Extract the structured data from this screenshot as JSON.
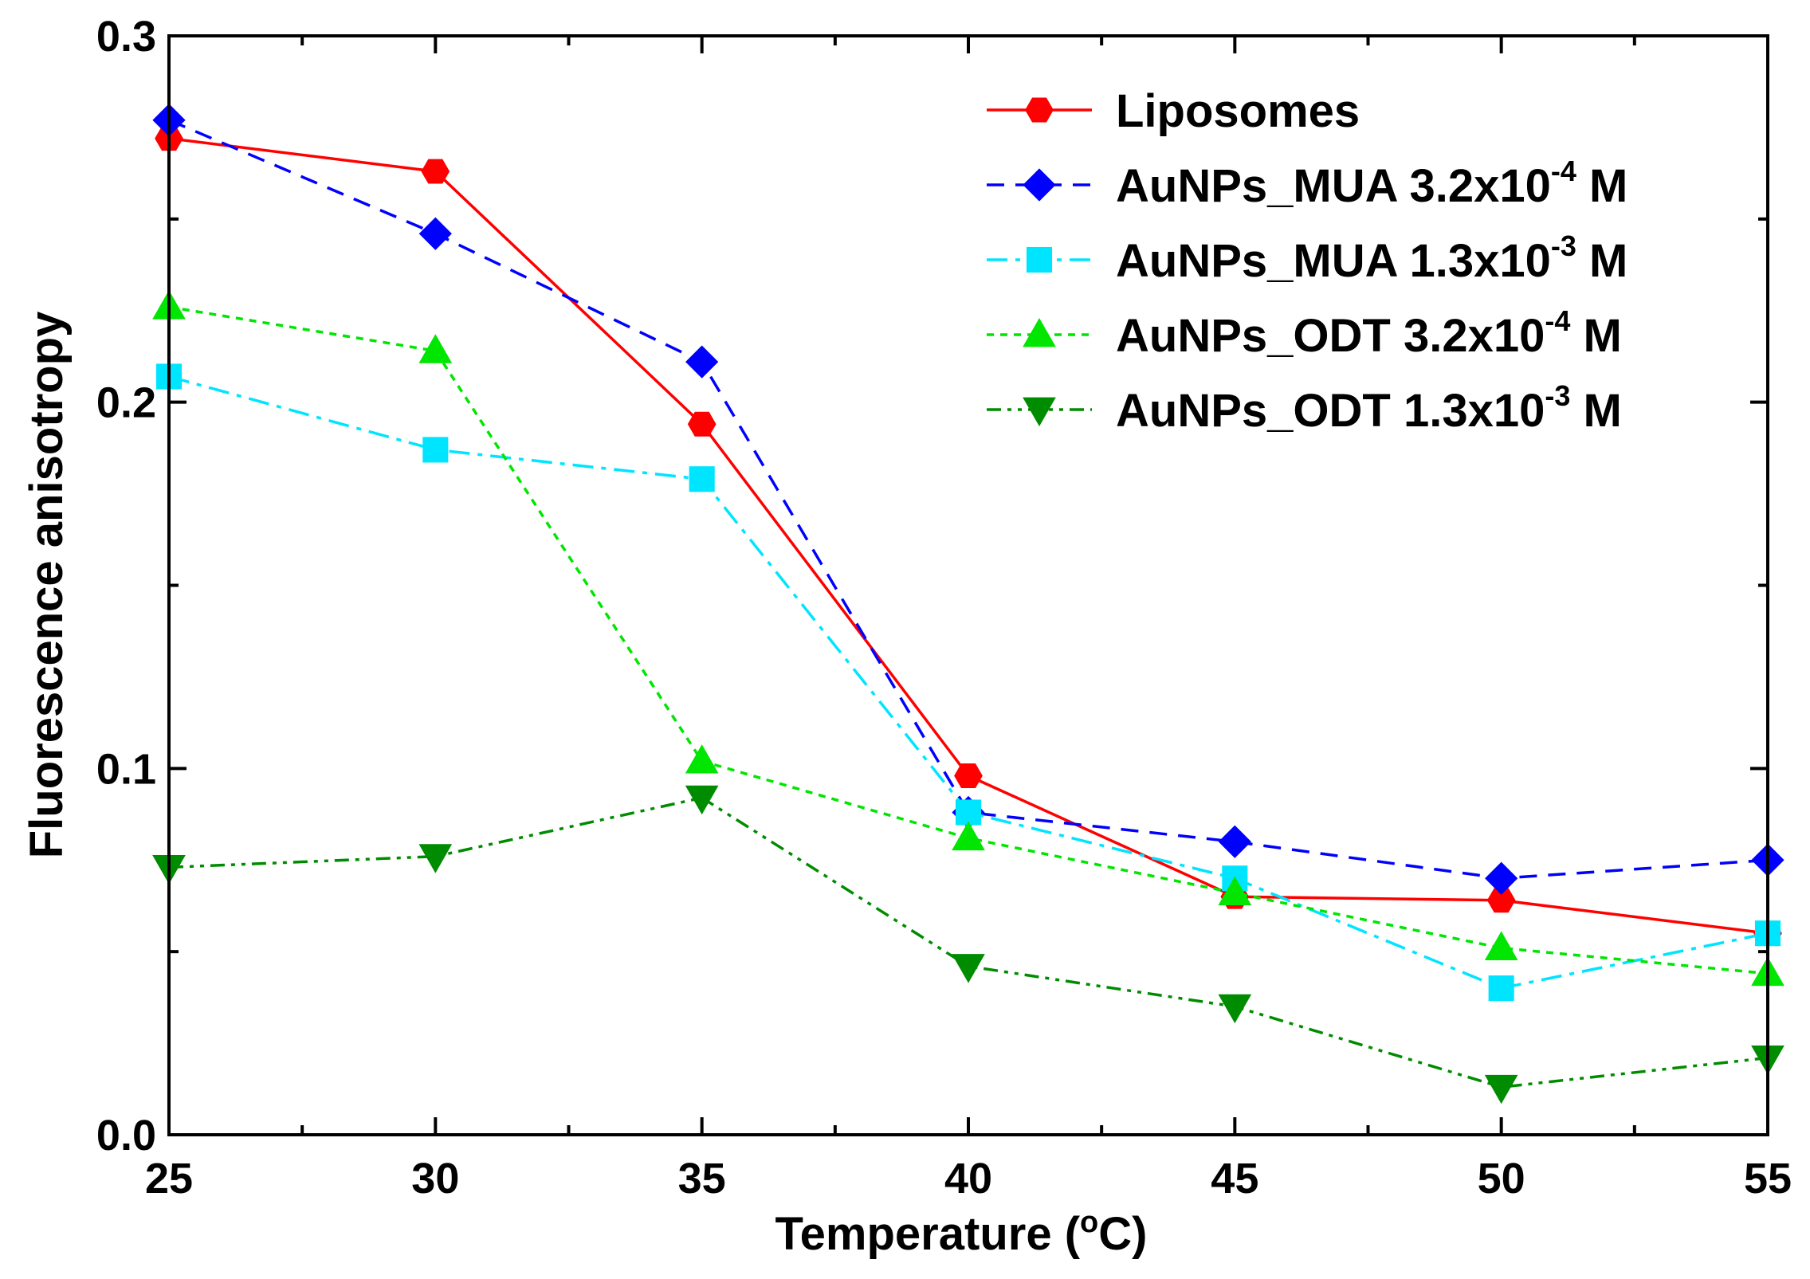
{
  "chart_data": {
    "type": "line",
    "title": "",
    "xlabel": "Temperature (",
    "xlabel_unit_sup": "o",
    "xlabel_unit_end": "C)",
    "ylabel": "Fluorescence anisotropy",
    "x": [
      25,
      30,
      35,
      40,
      45,
      50,
      55
    ],
    "xlim": [
      25,
      55
    ],
    "ylim": [
      0.0,
      0.3
    ],
    "x_ticks": [
      25,
      30,
      35,
      40,
      45,
      50,
      55
    ],
    "x_tick_labels": [
      "25",
      "30",
      "35",
      "40",
      "45",
      "50",
      "55"
    ],
    "y_ticks": [
      0.0,
      0.1,
      0.2,
      0.3
    ],
    "y_tick_labels": [
      "0.0",
      "0.1",
      "0.2",
      "0.3"
    ],
    "legend_position": "top-right",
    "grid": false,
    "series": [
      {
        "name": "Liposomes",
        "label_main": "Liposomes",
        "label_sup": "",
        "label_end": "",
        "color": "#ff0000",
        "marker": "hexagon",
        "dash": "solid",
        "values": [
          0.272,
          0.263,
          0.194,
          0.098,
          0.065,
          0.064,
          0.055
        ]
      },
      {
        "name": "AuNPs_MUA 3.2x10-4 M",
        "label_main": "AuNPs_MUA 3.2x10",
        "label_sup": "-4",
        "label_end": " M",
        "color": "#0000ff",
        "marker": "diamond",
        "dash": "dash",
        "values": [
          0.277,
          0.246,
          0.211,
          0.088,
          0.08,
          0.07,
          0.075
        ]
      },
      {
        "name": "AuNPs_MUA 1.3x10-3 M",
        "label_main": "AuNPs_MUA 1.3x10",
        "label_sup": "-3",
        "label_end": " M",
        "color": "#00e5ff",
        "marker": "square",
        "dash": "dashdot",
        "values": [
          0.207,
          0.187,
          0.179,
          0.088,
          0.07,
          0.04,
          0.055
        ]
      },
      {
        "name": "AuNPs_ODT 3.2x10-4 M",
        "label_main": "AuNPs_ODT 3.2x10",
        "label_sup": "-4",
        "label_end": " M",
        "color": "#00e600",
        "marker": "triangle-up",
        "dash": "dot",
        "values": [
          0.226,
          0.214,
          0.102,
          0.081,
          0.066,
          0.051,
          0.044
        ]
      },
      {
        "name": "AuNPs_ODT 1.3x10-3 M",
        "label_main": "AuNPs_ODT 1.3x10",
        "label_sup": "-3",
        "label_end": " M",
        "color": "#008c00",
        "marker": "triangle-down",
        "dash": "dashdotdot",
        "values": [
          0.073,
          0.076,
          0.092,
          0.046,
          0.035,
          0.013,
          0.021
        ]
      }
    ]
  }
}
